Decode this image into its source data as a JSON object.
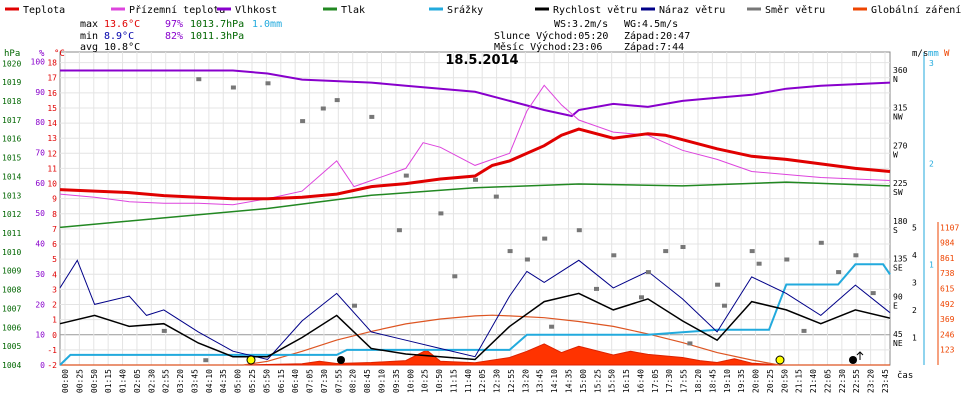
{
  "chart_data": {
    "type": "line",
    "title": "18.5.2014",
    "xlabel": "čas",
    "legend": [
      {
        "name": "Teplota",
        "color": "#e00000"
      },
      {
        "name": "Přízemní teplota",
        "color": "#dd44dd"
      },
      {
        "name": "Vlhkost",
        "color": "#8800cc"
      },
      {
        "name": "Tlak",
        "color": "#228822"
      },
      {
        "name": "Srážky",
        "color": "#22aadd"
      },
      {
        "name": "Rychlost větru",
        "color": "#000000"
      },
      {
        "name": "Náraz větru",
        "color": "#000088"
      },
      {
        "name": "Směr větru",
        "color": "#777777"
      },
      {
        "name": "Globální záření",
        "color": "#ee4400"
      }
    ],
    "stats": {
      "max_label": "max",
      "max_temp": "13.6°C",
      "max_hum": "97%",
      "max_press": "1013.7hPa",
      "max_rain": "1.0mm",
      "min_label": "min",
      "min_temp": "8.9°C",
      "min_hum": "82%",
      "min_press": "1011.3hPa",
      "avg_label": "avg",
      "avg_temp": "10.8°C"
    },
    "wind_info": {
      "ws": "WS:3.2m/s",
      "wg": "WG:4.5m/s"
    },
    "sun_info": {
      "line": "Slunce Východ:05:20",
      "set": "Západ:20:47"
    },
    "moon_info": {
      "line": "Měsíc  Východ:23:06",
      "set": "Západ:7:44"
    },
    "axes": {
      "hpa_label": "hPa",
      "pct_label": "%",
      "temp_label": "°C",
      "ms_label": "m/s",
      "mm_label": "mm",
      "w_label": "W",
      "hpa_ticks": [
        "1020",
        "1019",
        "1018",
        "1017",
        "1016",
        "1015",
        "1014",
        "1013",
        "1012",
        "1011",
        "1010",
        "1009",
        "1008",
        "1007",
        "1006",
        "1005",
        "1004"
      ],
      "pct_ticks": [
        "100",
        "90",
        "80",
        "70",
        "60",
        "50",
        "40",
        "30",
        "20",
        "10",
        "0"
      ],
      "temp_ticks": [
        "18",
        "17",
        "16",
        "15",
        "14",
        "13",
        "12",
        "11",
        "10",
        "9",
        "8",
        "7",
        "6",
        "5",
        "4",
        "3",
        "2",
        "1",
        "0",
        "-1",
        "-2"
      ],
      "dir_ticks": [
        {
          "deg": "360",
          "lab": "N"
        },
        {
          "deg": "315",
          "lab": "NW"
        },
        {
          "deg": "270",
          "lab": "W"
        },
        {
          "deg": "225",
          "lab": "SW"
        },
        {
          "deg": "180",
          "lab": "S"
        },
        {
          "deg": "135",
          "lab": "SE"
        },
        {
          "deg": "90",
          "lab": "E"
        },
        {
          "deg": "45",
          "lab": "NE"
        }
      ],
      "mm_ticks": [
        "3",
        "2",
        "1"
      ],
      "ms_ticks": [
        "5",
        "4",
        "3",
        "2",
        "1"
      ],
      "w_ticks": [
        "1107",
        "984",
        "861",
        "738",
        "615",
        "492",
        "369",
        "246",
        "123"
      ],
      "x_ticks": [
        "00:00",
        "00:25",
        "00:50",
        "01:15",
        "01:40",
        "02:05",
        "02:30",
        "02:55",
        "03:20",
        "03:45",
        "04:10",
        "04:35",
        "05:00",
        "05:25",
        "05:50",
        "06:15",
        "06:40",
        "07:05",
        "07:30",
        "07:55",
        "08:20",
        "08:45",
        "09:10",
        "09:35",
        "10:00",
        "10:25",
        "10:50",
        "11:15",
        "11:40",
        "12:05",
        "12:30",
        "12:55",
        "13:20",
        "13:45",
        "14:10",
        "14:35",
        "15:00",
        "15:25",
        "15:50",
        "16:15",
        "16:40",
        "17:05",
        "17:30",
        "17:55",
        "18:20",
        "18:45",
        "19:10",
        "19:35",
        "20:00",
        "20:25",
        "20:50",
        "21:15",
        "21:40",
        "22:05",
        "22:30",
        "22:55",
        "23:20",
        "23:45"
      ]
    },
    "series": {
      "temperature": [
        [
          0,
          9.6
        ],
        [
          1,
          9.5
        ],
        [
          2,
          9.4
        ],
        [
          3,
          9.2
        ],
        [
          4,
          9.1
        ],
        [
          5,
          9.0
        ],
        [
          6,
          9.0
        ],
        [
          7,
          9.1
        ],
        [
          8,
          9.3
        ],
        [
          9,
          9.8
        ],
        [
          10,
          10.0
        ],
        [
          11,
          10.3
        ],
        [
          12,
          10.5
        ],
        [
          12.5,
          11.2
        ],
        [
          13,
          11.5
        ],
        [
          14,
          12.5
        ],
        [
          14.5,
          13.2
        ],
        [
          15,
          13.6
        ],
        [
          16,
          13.0
        ],
        [
          17,
          13.3
        ],
        [
          17.5,
          13.2
        ],
        [
          18,
          12.9
        ],
        [
          19,
          12.3
        ],
        [
          20,
          11.8
        ],
        [
          21,
          11.6
        ],
        [
          22,
          11.3
        ],
        [
          23,
          11.0
        ],
        [
          24,
          10.8
        ]
      ],
      "ground_temperature": [
        [
          0,
          9.3
        ],
        [
          1,
          9.1
        ],
        [
          2,
          8.8
        ],
        [
          3,
          8.7
        ],
        [
          4,
          8.7
        ],
        [
          5,
          8.6
        ],
        [
          6,
          9.0
        ],
        [
          7,
          9.5
        ],
        [
          8,
          11.5
        ],
        [
          8.5,
          9.8
        ],
        [
          9,
          10.2
        ],
        [
          10,
          11.0
        ],
        [
          10.5,
          12.7
        ],
        [
          11,
          12.4
        ],
        [
          12,
          11.2
        ],
        [
          13,
          12.0
        ],
        [
          13.5,
          14.8
        ],
        [
          14,
          16.5
        ],
        [
          14.5,
          15.2
        ],
        [
          15,
          14.2
        ],
        [
          16,
          13.4
        ],
        [
          17,
          13.2
        ],
        [
          18,
          12.2
        ],
        [
          19,
          11.6
        ],
        [
          20,
          10.8
        ],
        [
          21,
          10.6
        ],
        [
          22,
          10.4
        ],
        [
          23,
          10.3
        ],
        [
          24,
          10.2
        ]
      ],
      "humidity": [
        [
          0,
          97
        ],
        [
          5,
          97
        ],
        [
          6,
          96
        ],
        [
          7,
          94
        ],
        [
          9,
          93
        ],
        [
          10,
          92
        ],
        [
          12,
          90
        ],
        [
          13,
          87
        ],
        [
          14,
          84
        ],
        [
          14.8,
          82
        ],
        [
          15,
          84
        ],
        [
          16,
          86
        ],
        [
          17,
          85
        ],
        [
          18,
          87
        ],
        [
          19,
          88
        ],
        [
          20,
          89
        ],
        [
          21,
          91
        ],
        [
          22,
          92
        ],
        [
          24,
          93
        ]
      ],
      "pressure": [
        [
          0,
          1011.3
        ],
        [
          3,
          1011.8
        ],
        [
          6,
          1012.3
        ],
        [
          9,
          1013.0
        ],
        [
          12,
          1013.4
        ],
        [
          15,
          1013.6
        ],
        [
          18,
          1013.5
        ],
        [
          21,
          1013.7
        ],
        [
          24,
          1013.5
        ]
      ],
      "precipitation": [
        [
          0,
          0
        ],
        [
          0.3,
          0.1
        ],
        [
          5,
          0.1
        ],
        [
          5.5,
          0.1
        ],
        [
          8,
          0.1
        ],
        [
          8.3,
          0.15
        ],
        [
          13,
          0.15
        ],
        [
          13.5,
          0.3
        ],
        [
          17,
          0.3
        ],
        [
          19,
          0.35
        ],
        [
          20.5,
          0.35
        ],
        [
          21,
          0.8
        ],
        [
          22.5,
          0.8
        ],
        [
          23,
          1.0
        ],
        [
          23.8,
          1.0
        ],
        [
          24,
          0.9
        ]
      ],
      "wind_speed": [
        [
          0,
          1.5
        ],
        [
          1,
          1.8
        ],
        [
          2,
          1.4
        ],
        [
          3,
          1.5
        ],
        [
          4,
          0.8
        ],
        [
          5,
          0.3
        ],
        [
          6,
          0.3
        ],
        [
          7,
          1.0
        ],
        [
          8,
          1.8
        ],
        [
          9,
          0.6
        ],
        [
          10,
          0.4
        ],
        [
          11,
          0.3
        ],
        [
          12,
          0.2
        ],
        [
          13,
          1.4
        ],
        [
          14,
          2.3
        ],
        [
          15,
          2.6
        ],
        [
          16,
          2.0
        ],
        [
          17,
          2.4
        ],
        [
          18,
          1.6
        ],
        [
          19,
          0.9
        ],
        [
          20,
          2.3
        ],
        [
          21,
          2.0
        ],
        [
          22,
          1.5
        ],
        [
          23,
          2.0
        ],
        [
          24,
          1.7
        ]
      ],
      "wind_gust": [
        [
          0,
          2.8
        ],
        [
          0.5,
          3.8
        ],
        [
          1,
          2.2
        ],
        [
          2,
          2.5
        ],
        [
          2.5,
          1.8
        ],
        [
          3,
          2.0
        ],
        [
          4,
          1.2
        ],
        [
          5,
          0.5
        ],
        [
          6,
          0.2
        ],
        [
          7,
          1.6
        ],
        [
          8,
          2.6
        ],
        [
          9,
          1.2
        ],
        [
          10,
          0.9
        ],
        [
          11,
          0.6
        ],
        [
          12,
          0.3
        ],
        [
          13,
          2.5
        ],
        [
          13.5,
          3.4
        ],
        [
          14,
          3.0
        ],
        [
          15,
          3.8
        ],
        [
          16,
          2.8
        ],
        [
          17,
          3.4
        ],
        [
          18,
          2.4
        ],
        [
          19,
          1.2
        ],
        [
          20,
          3.2
        ],
        [
          21,
          2.6
        ],
        [
          22,
          1.8
        ],
        [
          23,
          2.9
        ],
        [
          24,
          1.9
        ]
      ],
      "global_radiation": [
        [
          0,
          0
        ],
        [
          5.3,
          0
        ],
        [
          6,
          30
        ],
        [
          7,
          110
        ],
        [
          8,
          200
        ],
        [
          9,
          270
        ],
        [
          10,
          330
        ],
        [
          11,
          370
        ],
        [
          12,
          395
        ],
        [
          12.5,
          400
        ],
        [
          13,
          395
        ],
        [
          14,
          380
        ],
        [
          15,
          350
        ],
        [
          16,
          310
        ],
        [
          17,
          250
        ],
        [
          18,
          180
        ],
        [
          19,
          100
        ],
        [
          20,
          40
        ],
        [
          20.8,
          0
        ],
        [
          24,
          0
        ]
      ],
      "radiation_measured": [
        [
          5.3,
          0
        ],
        [
          7,
          10
        ],
        [
          7.5,
          30
        ],
        [
          8,
          12
        ],
        [
          9,
          20
        ],
        [
          10,
          35
        ],
        [
          10.6,
          120
        ],
        [
          11,
          30
        ],
        [
          12,
          18
        ],
        [
          13,
          60
        ],
        [
          13.5,
          110
        ],
        [
          14,
          170
        ],
        [
          14.5,
          100
        ],
        [
          15,
          150
        ],
        [
          16,
          80
        ],
        [
          16.5,
          110
        ],
        [
          17,
          85
        ],
        [
          18,
          60
        ],
        [
          18.5,
          35
        ],
        [
          19,
          20
        ],
        [
          19.5,
          50
        ],
        [
          20,
          15
        ],
        [
          20.8,
          0
        ]
      ],
      "wind_direction": [
        [
          4,
          355
        ],
        [
          5,
          345
        ],
        [
          6,
          350
        ],
        [
          7,
          305
        ],
        [
          7.6,
          320
        ],
        [
          8,
          330
        ],
        [
          9,
          310
        ],
        [
          10,
          240
        ],
        [
          11,
          195
        ],
        [
          12,
          235
        ],
        [
          13,
          150
        ],
        [
          13.5,
          140
        ],
        [
          14,
          165
        ],
        [
          15,
          175
        ],
        [
          16,
          145
        ],
        [
          17,
          125
        ],
        [
          18,
          155
        ],
        [
          19,
          110
        ],
        [
          20,
          150
        ],
        [
          21,
          140
        ],
        [
          22,
          160
        ],
        [
          23,
          145
        ],
        [
          3,
          55
        ],
        [
          4.2,
          20
        ],
        [
          8.5,
          85
        ],
        [
          9.8,
          175
        ],
        [
          11.4,
          120
        ],
        [
          12.6,
          215
        ],
        [
          14.2,
          60
        ],
        [
          15.5,
          105
        ],
        [
          16.8,
          95
        ],
        [
          17.5,
          150
        ],
        [
          18.2,
          40
        ],
        [
          19.2,
          85
        ],
        [
          20.2,
          135
        ],
        [
          21.5,
          55
        ],
        [
          22.5,
          125
        ],
        [
          23.5,
          100
        ]
      ]
    }
  }
}
